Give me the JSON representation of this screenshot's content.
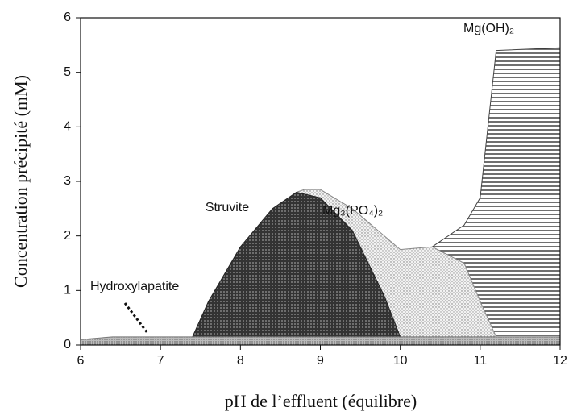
{
  "chart_data": {
    "type": "area",
    "x_label": "pH de l’effluent (équilibre)",
    "y_label": "Concentration précipité (mM)",
    "xlim": [
      6,
      12
    ],
    "xticks": [
      6,
      7,
      8,
      9,
      10,
      11,
      12
    ],
    "ylim": [
      0,
      6
    ],
    "yticks": [
      0,
      1,
      2,
      3,
      4,
      5,
      6
    ],
    "grid": false,
    "series": [
      {
        "name": "Mg(OH)₂",
        "color": "#444444",
        "pattern": "horizontal-lines",
        "x": [
          10.4,
          10.8,
          11,
          11.2,
          12
        ],
        "values": [
          1.8,
          2.2,
          2.7,
          5.4,
          5.45
        ]
      },
      {
        "name": "Mg₃(PO₄)₂",
        "color": "#888888",
        "pattern": "dots",
        "x": [
          8.7,
          8.8,
          9,
          9.4,
          9.8,
          10,
          10.4,
          10.8,
          11,
          11.2
        ],
        "values": [
          2.8,
          2.85,
          2.85,
          2.5,
          2.0,
          1.75,
          1.8,
          1.5,
          0.8,
          0.15
        ]
      },
      {
        "name": "Struvite",
        "color": "#222222",
        "pattern": "crosshatch",
        "x": [
          7.4,
          7.6,
          8,
          8.4,
          8.7,
          9,
          9.4,
          9.8,
          10
        ],
        "values": [
          0.15,
          0.8,
          1.8,
          2.5,
          2.8,
          2.7,
          2.1,
          0.9,
          0.15
        ]
      },
      {
        "name": "Hydroxylapatite",
        "color": "#777777",
        "pattern": "fine-dots",
        "x": [
          6,
          6.4,
          12
        ],
        "values": [
          0.1,
          0.15,
          0.15
        ]
      }
    ]
  }
}
